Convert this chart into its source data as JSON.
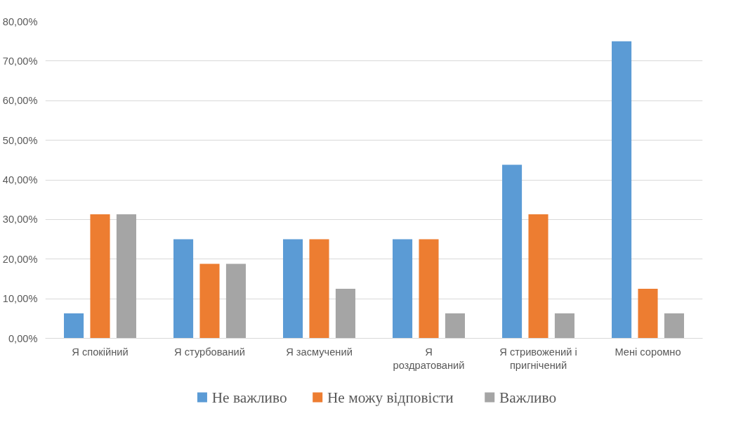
{
  "chart_data": {
    "type": "bar",
    "categories": [
      "Я спокійний",
      "Я стурбований",
      "Я засмучений",
      "Я\nроздратований",
      "Я стривожений і\nпригнічений",
      "Мені соромно"
    ],
    "series": [
      {
        "name": "Не важливо",
        "color": "#5b9bd5",
        "values": [
          6.3,
          25,
          25,
          25,
          43.8,
          75
        ]
      },
      {
        "name": "Не можу відповісти",
        "color": "#ed7d31",
        "values": [
          31.3,
          18.8,
          25,
          25,
          31.3,
          12.5
        ]
      },
      {
        "name": "Важливо",
        "color": "#a5a5a5",
        "values": [
          31.3,
          18.8,
          12.5,
          6.3,
          6.3,
          6.3
        ]
      }
    ],
    "ylim": [
      0,
      80
    ],
    "yticks": [
      {
        "value": 0,
        "label": "0,00%"
      },
      {
        "value": 10,
        "label": "10,00%"
      },
      {
        "value": 20,
        "label": "20,00%"
      },
      {
        "value": 30,
        "label": "30,00%"
      },
      {
        "value": 40,
        "label": "40,00%"
      },
      {
        "value": 50,
        "label": "50,00%"
      },
      {
        "value": 60,
        "label": "60,00%"
      },
      {
        "value": 70,
        "label": "70,00%"
      },
      {
        "value": 80,
        "label": "80,00%"
      }
    ],
    "grid": "y",
    "legend": "bottom"
  }
}
